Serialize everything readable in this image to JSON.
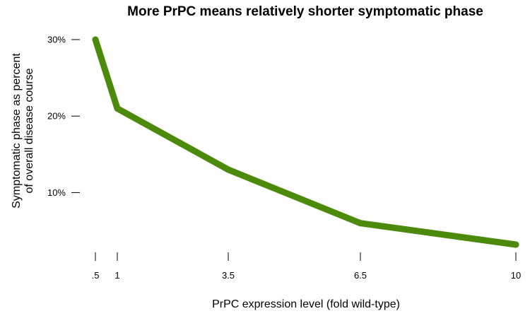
{
  "chart_data": {
    "type": "line",
    "title": "More PrPC means relatively shorter symptomatic phase",
    "xlabel": "PrPC expression level (fold wild-type)",
    "ylabel": [
      "Symptomatic phase as percent",
      "of overall disease course"
    ],
    "x": [
      0.5,
      1,
      3.5,
      6.5,
      10
    ],
    "x_tick_values": [
      0.5,
      1,
      3.5,
      6.5,
      10
    ],
    "x_tick_labels": [
      ".5",
      "1",
      "3.5",
      "6.5",
      "10"
    ],
    "y_tick_values": [
      10,
      20,
      30
    ],
    "y_tick_labels": [
      "10%",
      "20%",
      "30%"
    ],
    "xlim": [
      0.5,
      10
    ],
    "ylim": [
      3.2,
      30
    ],
    "series": [
      {
        "values": [
          30,
          21,
          13,
          6,
          3.2
        ],
        "color": "#4c8a0c"
      }
    ],
    "grid": false,
    "legend": "none"
  }
}
